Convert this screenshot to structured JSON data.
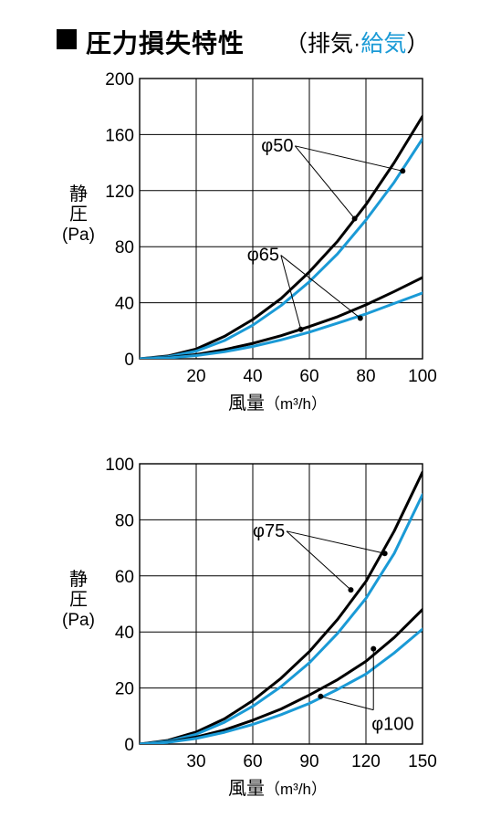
{
  "header": {
    "title": "圧力損失特性",
    "sub_open": "（排気·",
    "sub_blue": "給気",
    "sub_close": "）"
  },
  "colors": {
    "exhaust": "#000000",
    "supply": "#1a9ad6"
  },
  "chart_data": [
    {
      "type": "line",
      "xlabel_main": "風量",
      "xlabel_unit": "（m³/h）",
      "ylabel": [
        "静",
        "圧",
        "(Pa)"
      ],
      "xlim": [
        0,
        100
      ],
      "ylim": [
        0,
        200
      ],
      "xticks": [
        "20",
        "40",
        "60",
        "80",
        "100"
      ],
      "yticks": [
        "0",
        "40",
        "80",
        "120",
        "160",
        "200"
      ],
      "grid": true,
      "series": [
        {
          "group": "φ50",
          "flow": "exhaust",
          "x": [
            0,
            10,
            20,
            30,
            40,
            50,
            60,
            70,
            80,
            90,
            100
          ],
          "y": [
            0,
            2,
            7,
            16,
            28,
            43,
            62,
            84,
            110,
            140,
            173
          ]
        },
        {
          "group": "φ50",
          "flow": "supply",
          "x": [
            0,
            10,
            20,
            30,
            40,
            50,
            60,
            70,
            80,
            90,
            100
          ],
          "y": [
            0,
            1.5,
            5.5,
            13,
            24,
            38,
            55,
            75,
            99,
            126,
            157
          ]
        },
        {
          "group": "φ65",
          "flow": "exhaust",
          "x": [
            0,
            10,
            20,
            30,
            40,
            50,
            60,
            70,
            80,
            90,
            100
          ],
          "y": [
            0,
            0.8,
            3,
            6.5,
            11,
            16.5,
            23,
            30,
            38.5,
            48,
            58
          ]
        },
        {
          "group": "φ65",
          "flow": "supply",
          "x": [
            0,
            10,
            20,
            30,
            40,
            50,
            60,
            70,
            80,
            90,
            100
          ],
          "y": [
            0,
            0.6,
            2.3,
            5,
            8.8,
            13.5,
            19,
            25.5,
            32,
            39.5,
            47
          ]
        }
      ],
      "annotations": [
        {
          "text": "φ50",
          "label_x": 43,
          "label_y": 148,
          "points": [
            [
              76,
              100
            ],
            [
              93,
              134
            ]
          ]
        },
        {
          "text": "φ65",
          "label_x": 38,
          "label_y": 70,
          "points": [
            [
              57,
              21
            ],
            [
              78,
              29
            ]
          ]
        }
      ]
    },
    {
      "type": "line",
      "xlabel_main": "風量",
      "xlabel_unit": "（m³/h）",
      "ylabel": [
        "静",
        "圧",
        "(Pa)"
      ],
      "xlim": [
        0,
        150
      ],
      "ylim": [
        0,
        100
      ],
      "xticks": [
        "30",
        "60",
        "90",
        "120",
        "150"
      ],
      "yticks": [
        "0",
        "20",
        "40",
        "60",
        "80",
        "100"
      ],
      "grid": true,
      "series": [
        {
          "group": "φ75",
          "flow": "exhaust",
          "x": [
            0,
            15,
            30,
            45,
            60,
            75,
            90,
            105,
            120,
            135,
            150
          ],
          "y": [
            0,
            1.3,
            4.3,
            9,
            15.5,
            23.5,
            33,
            44.5,
            58,
            76,
            97
          ]
        },
        {
          "group": "φ75",
          "flow": "supply",
          "x": [
            0,
            15,
            30,
            45,
            60,
            75,
            90,
            105,
            120,
            135,
            150
          ],
          "y": [
            0,
            1,
            3.5,
            7.8,
            13.5,
            20.5,
            29,
            39.5,
            52,
            68,
            89
          ]
        },
        {
          "group": "φ100",
          "flow": "exhaust",
          "x": [
            0,
            15,
            30,
            45,
            60,
            75,
            90,
            105,
            120,
            135,
            150
          ],
          "y": [
            0,
            0.7,
            2.5,
            5,
            8.5,
            12.5,
            17.5,
            23,
            29.5,
            38,
            48
          ]
        },
        {
          "group": "φ100",
          "flow": "supply",
          "x": [
            0,
            15,
            30,
            45,
            60,
            75,
            90,
            105,
            120,
            135,
            150
          ],
          "y": [
            0,
            0.6,
            2,
            4.2,
            7,
            10.5,
            14.5,
            19.5,
            25,
            32.5,
            41
          ]
        }
      ],
      "annotations": [
        {
          "text": "φ75",
          "label_x": 60,
          "label_y": 74,
          "points": [
            [
              112,
              55
            ],
            [
              130,
              68
            ]
          ]
        },
        {
          "text": "φ100",
          "label_x": 123,
          "label_y": 5,
          "points": [
            [
              96,
              17
            ],
            [
              124,
              34
            ]
          ]
        }
      ]
    }
  ]
}
